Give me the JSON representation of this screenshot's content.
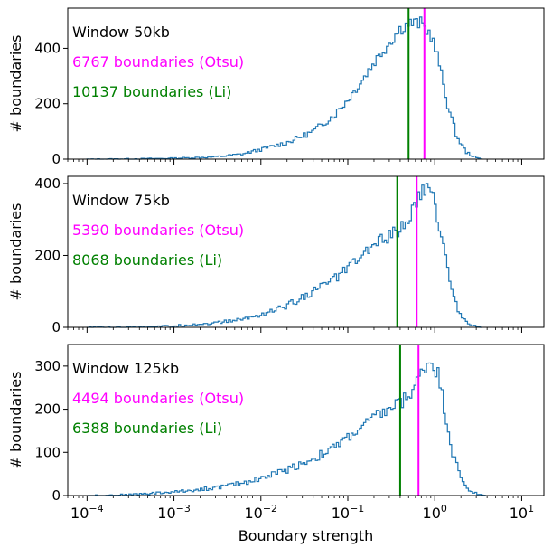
{
  "chart_data": [
    {
      "type": "histogram",
      "x_scale": "log",
      "xlim": [
        6e-05,
        18
      ],
      "ylim": [
        0,
        545
      ],
      "yticks": [
        "0",
        "200",
        "400"
      ],
      "ylabel": "# boundaries",
      "annotations": [
        {
          "text": "Window 50kb",
          "color": "#000000"
        },
        {
          "text": "6767 boundaries (Otsu)",
          "color": "#ff00ff"
        },
        {
          "text": "10137 boundaries (Li)",
          "color": "#008000"
        }
      ],
      "thresholds": [
        {
          "method": "Li",
          "x": 0.5,
          "color": "#008000"
        },
        {
          "method": "Otsu",
          "x": 0.76,
          "color": "#ff00ff"
        }
      ],
      "series": [
        {
          "color": "#1f77b4",
          "points": [
            [
              0.0001,
              0
            ],
            [
              0.0003,
              1
            ],
            [
              0.001,
              3
            ],
            [
              0.003,
              8
            ],
            [
              0.006,
              18
            ],
            [
              0.01,
              35
            ],
            [
              0.02,
              60
            ],
            [
              0.04,
              100
            ],
            [
              0.07,
              160
            ],
            [
              0.1,
              215
            ],
            [
              0.15,
              290
            ],
            [
              0.2,
              350
            ],
            [
              0.3,
              420
            ],
            [
              0.4,
              470
            ],
            [
              0.5,
              490
            ],
            [
              0.7,
              490
            ],
            [
              0.9,
              450
            ],
            [
              1.1,
              360
            ],
            [
              1.4,
              200
            ],
            [
              1.8,
              80
            ],
            [
              2.3,
              25
            ],
            [
              3,
              5
            ],
            [
              3.5,
              0
            ]
          ]
        }
      ]
    },
    {
      "type": "histogram",
      "x_scale": "log",
      "xlim": [
        6e-05,
        18
      ],
      "ylim": [
        0,
        420
      ],
      "yticks": [
        "0",
        "200",
        "400"
      ],
      "ylabel": "# boundaries",
      "annotations": [
        {
          "text": "Window 75kb",
          "color": "#000000"
        },
        {
          "text": "5390 boundaries (Otsu)",
          "color": "#ff00ff"
        },
        {
          "text": "8068 boundaries (Li)",
          "color": "#008000"
        }
      ],
      "thresholds": [
        {
          "method": "Li",
          "x": 0.37,
          "color": "#008000"
        },
        {
          "method": "Otsu",
          "x": 0.62,
          "color": "#ff00ff"
        }
      ],
      "series": [
        {
          "color": "#1f77b4",
          "points": [
            [
              0.0001,
              0
            ],
            [
              0.0003,
              1
            ],
            [
              0.001,
              4
            ],
            [
              0.003,
              12
            ],
            [
              0.006,
              22
            ],
            [
              0.01,
              35
            ],
            [
              0.02,
              60
            ],
            [
              0.04,
              100
            ],
            [
              0.07,
              135
            ],
            [
              0.1,
              165
            ],
            [
              0.15,
              200
            ],
            [
              0.2,
              230
            ],
            [
              0.3,
              255
            ],
            [
              0.4,
              270
            ],
            [
              0.5,
              300
            ],
            [
              0.6,
              340
            ],
            [
              0.75,
              385
            ],
            [
              0.85,
              390
            ],
            [
              1,
              345
            ],
            [
              1.2,
              250
            ],
            [
              1.5,
              130
            ],
            [
              1.8,
              55
            ],
            [
              2.3,
              15
            ],
            [
              3,
              3
            ],
            [
              3.5,
              0
            ]
          ]
        }
      ]
    },
    {
      "type": "histogram",
      "x_scale": "log",
      "xlim": [
        6e-05,
        18
      ],
      "ylim": [
        0,
        350
      ],
      "yticks": [
        "0",
        "100",
        "200",
        "300"
      ],
      "ylabel": "# boundaries",
      "xlabel": "Boundary strength",
      "xticks": [
        {
          "value": 0.0001,
          "base": "10",
          "exp": "−4"
        },
        {
          "value": 0.001,
          "base": "10",
          "exp": "−3"
        },
        {
          "value": 0.01,
          "base": "10",
          "exp": "−2"
        },
        {
          "value": 0.1,
          "base": "10",
          "exp": "−1"
        },
        {
          "value": 1,
          "base": "10",
          "exp": "0"
        },
        {
          "value": 10,
          "base": "10",
          "exp": "1"
        }
      ],
      "annotations": [
        {
          "text": "Window 125kb",
          "color": "#000000"
        },
        {
          "text": "4494 boundaries (Otsu)",
          "color": "#ff00ff"
        },
        {
          "text": "6388 boundaries (Li)",
          "color": "#008000"
        }
      ],
      "thresholds": [
        {
          "method": "Li",
          "x": 0.4,
          "color": "#008000"
        },
        {
          "method": "Otsu",
          "x": 0.65,
          "color": "#ff00ff"
        }
      ],
      "series": [
        {
          "color": "#1f77b4",
          "points": [
            [
              0.0001,
              0
            ],
            [
              0.0003,
              2
            ],
            [
              0.001,
              8
            ],
            [
              0.003,
              18
            ],
            [
              0.006,
              28
            ],
            [
              0.01,
              40
            ],
            [
              0.02,
              60
            ],
            [
              0.04,
              85
            ],
            [
              0.07,
              110
            ],
            [
              0.1,
              135
            ],
            [
              0.15,
              160
            ],
            [
              0.2,
              180
            ],
            [
              0.3,
              200
            ],
            [
              0.4,
              215
            ],
            [
              0.5,
              230
            ],
            [
              0.6,
              255
            ],
            [
              0.75,
              295
            ],
            [
              0.9,
              315
            ],
            [
              1.1,
              280
            ],
            [
              1.3,
              200
            ],
            [
              1.6,
              100
            ],
            [
              2,
              40
            ],
            [
              2.5,
              12
            ],
            [
              3.2,
              2
            ],
            [
              3.8,
              0
            ]
          ]
        }
      ]
    }
  ]
}
